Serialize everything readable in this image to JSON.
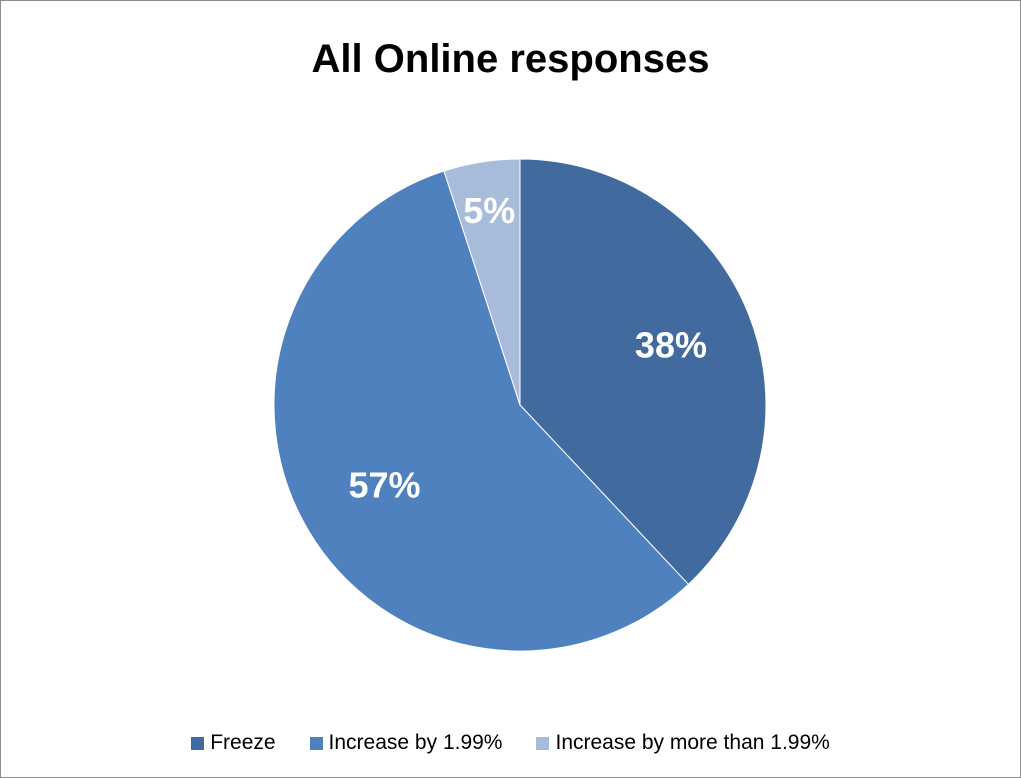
{
  "chart_data": {
    "type": "pie",
    "title": "All Online responses",
    "series": [
      {
        "name": "",
        "values": [
          {
            "category": "Freeze",
            "value": 38,
            "label": "38%",
            "color": "#416b9f"
          },
          {
            "category": "Increase by 1.99%",
            "value": 57,
            "label": "57%",
            "color": "#4e81bd"
          },
          {
            "category": "Increase by more than 1.99%",
            "value": 5,
            "label": "5%",
            "color": "#a9bbdb"
          }
        ]
      }
    ],
    "legend_position": "bottom",
    "start_angle": "12 o'clock",
    "direction": "clockwise"
  }
}
